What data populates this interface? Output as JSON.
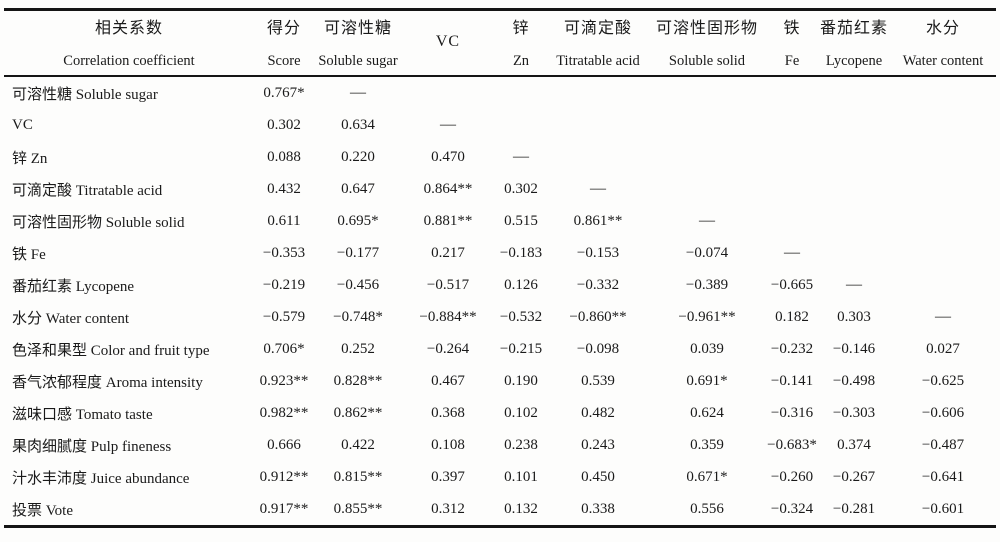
{
  "table": {
    "header": {
      "label": {
        "zh": "相关系数",
        "en": "Correlation coefficient"
      },
      "columns": [
        {
          "zh": "得分",
          "en": "Score"
        },
        {
          "zh": "可溶性糖",
          "en": "Soluble sugar"
        },
        {
          "zh": "VC",
          "en": ""
        },
        {
          "zh": "锌",
          "en": "Zn"
        },
        {
          "zh": "可滴定酸",
          "en": "Titratable acid"
        },
        {
          "zh": "可溶性固形物",
          "en": "Soluble solid"
        },
        {
          "zh": "铁",
          "en": "Fe"
        },
        {
          "zh": "番茄红素",
          "en": "Lycopene"
        },
        {
          "zh": "水分",
          "en": "Water content"
        }
      ]
    },
    "rows": [
      {
        "label": "可溶性糖 Soluble sugar",
        "values": [
          "0.767*",
          "—",
          "",
          "",
          "",
          "",
          "",
          "",
          ""
        ]
      },
      {
        "label": "VC",
        "values": [
          "0.302",
          "0.634",
          "—",
          "",
          "",
          "",
          "",
          "",
          ""
        ]
      },
      {
        "label": "锌 Zn",
        "values": [
          "0.088",
          "0.220",
          "0.470",
          "—",
          "",
          "",
          "",
          "",
          ""
        ]
      },
      {
        "label": "可滴定酸 Titratable acid",
        "values": [
          "0.432",
          "0.647",
          "0.864**",
          "0.302",
          "—",
          "",
          "",
          "",
          ""
        ]
      },
      {
        "label": "可溶性固形物 Soluble solid",
        "values": [
          "0.611",
          "0.695*",
          "0.881**",
          "0.515",
          "0.861**",
          "—",
          "",
          "",
          ""
        ]
      },
      {
        "label": "铁 Fe",
        "values": [
          "−0.353",
          "−0.177",
          "0.217",
          "−0.183",
          "−0.153",
          "−0.074",
          "—",
          "",
          ""
        ]
      },
      {
        "label": "番茄红素 Lycopene",
        "values": [
          "−0.219",
          "−0.456",
          "−0.517",
          "0.126",
          "−0.332",
          "−0.389",
          "−0.665",
          "—",
          ""
        ]
      },
      {
        "label": "水分 Water content",
        "values": [
          "−0.579",
          "−0.748*",
          "−0.884**",
          "−0.532",
          "−0.860**",
          "−0.961**",
          "0.182",
          "0.303",
          "—"
        ]
      },
      {
        "label": "色泽和果型 Color and fruit type",
        "values": [
          "0.706*",
          "0.252",
          "−0.264",
          "−0.215",
          "−0.098",
          "0.039",
          "−0.232",
          "−0.146",
          "0.027"
        ]
      },
      {
        "label": "香气浓郁程度 Aroma intensity",
        "values": [
          "0.923**",
          "0.828**",
          "0.467",
          "0.190",
          "0.539",
          "0.691*",
          "−0.141",
          "−0.498",
          "−0.625"
        ]
      },
      {
        "label": "滋味口感 Tomato taste",
        "values": [
          "0.982**",
          "0.862**",
          "0.368",
          "0.102",
          "0.482",
          "0.624",
          "−0.316",
          "−0.303",
          "−0.606"
        ]
      },
      {
        "label": "果肉细腻度 Pulp fineness",
        "values": [
          "0.666",
          "0.422",
          "0.108",
          "0.238",
          "0.243",
          "0.359",
          "−0.683*",
          "0.374",
          "−0.487"
        ]
      },
      {
        "label": "汁水丰沛度 Juice abundance",
        "values": [
          "0.912**",
          "0.815**",
          "0.397",
          "0.101",
          "0.450",
          "0.671*",
          "−0.260",
          "−0.267",
          "−0.641"
        ]
      },
      {
        "label": "投票 Vote",
        "values": [
          "0.917**",
          "0.855**",
          "0.312",
          "0.132",
          "0.338",
          "0.556",
          "−0.324",
          "−0.281",
          "−0.601"
        ]
      }
    ]
  }
}
